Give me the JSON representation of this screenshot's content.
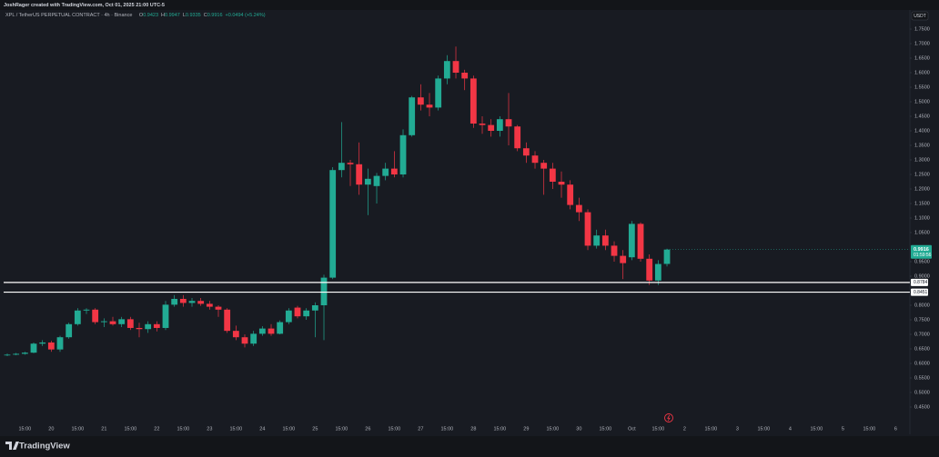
{
  "chart_data": {
    "type": "candlestick",
    "header": "JoshRager created with TradingView.com, Oct 01, 2025 21:00 UTC-5",
    "symbol": "XPL / TetherUS PERPETUAL CONTRACT · 4h · Binance",
    "legend_keys": [
      "O",
      "H",
      "L",
      "C"
    ],
    "change": "+0.0494 (+5.24%)",
    "currency": "USDT",
    "countdown": "01:59:56",
    "logo": "TradingView",
    "up_color": "#22ab94",
    "down_color": "#f23645",
    "categories": [
      null,
      null,
      "15:00",
      null,
      null,
      "20",
      null,
      null,
      "15:00",
      null,
      null,
      "21",
      null,
      null,
      "15:00",
      null,
      null,
      "22",
      null,
      null,
      "15:00",
      null,
      null,
      "23",
      null,
      null,
      "15:00",
      null,
      null,
      "24",
      null,
      null,
      "15:00",
      null,
      null,
      "25",
      null,
      null,
      "15:00",
      null,
      null,
      "26",
      null,
      null,
      "15:00",
      null,
      null,
      "27",
      null,
      null,
      "15:00",
      null,
      null,
      "28",
      null,
      null,
      "15:00",
      null,
      null,
      "29",
      null,
      null,
      "15:00",
      null,
      null,
      "30",
      null,
      null,
      "15:00",
      null,
      null,
      "Oct",
      null,
      null,
      "15:00",
      null,
      null,
      "2",
      null,
      null,
      "15:00",
      null,
      null,
      "3",
      null,
      null,
      "15:00",
      null,
      null,
      "4",
      null,
      null,
      "15:00",
      null,
      null,
      "5",
      null,
      null,
      "15:00",
      null,
      null,
      "6"
    ],
    "open": [
      0.628,
      0.63,
      0.633,
      0.637,
      0.668,
      0.672,
      0.648,
      0.69,
      0.735,
      0.782,
      0.785,
      0.742,
      0.745,
      0.735,
      0.752,
      0.722,
      0.718,
      0.735,
      0.722,
      0.802,
      0.822,
      0.808,
      0.815,
      0.805,
      0.795,
      0.785,
      0.712,
      0.69,
      0.668,
      0.702,
      0.72,
      0.702,
      0.742,
      0.792,
      0.762,
      0.782,
      0.8,
      0.895,
      1.265,
      1.29,
      1.285,
      1.215,
      1.21,
      1.245,
      1.27,
      1.25,
      1.385,
      1.515,
      1.49,
      1.48,
      1.58,
      1.64,
      1.6,
      1.58,
      1.425,
      1.42,
      1.4,
      1.44,
      1.415,
      1.34,
      1.315,
      1.29,
      1.27,
      1.225,
      1.215,
      1.145,
      1.12,
      1.005,
      1.04,
      1.005,
      0.97,
      0.965,
      1.08,
      0.96,
      0.885,
      0.9423,
      null,
      null,
      null,
      null,
      null,
      null,
      null,
      null,
      null,
      null,
      null,
      null,
      null,
      null,
      null,
      null,
      null,
      null,
      null,
      null,
      null,
      null,
      null,
      null,
      null,
      null
    ],
    "high": [
      0.634,
      0.636,
      0.64,
      0.672,
      0.68,
      0.678,
      0.695,
      0.74,
      0.79,
      0.79,
      0.79,
      0.755,
      0.76,
      0.76,
      0.76,
      0.74,
      0.745,
      0.745,
      0.815,
      0.835,
      0.835,
      0.825,
      0.825,
      0.815,
      0.8,
      0.79,
      0.73,
      0.7,
      0.712,
      0.728,
      0.735,
      0.748,
      0.79,
      0.798,
      0.79,
      0.81,
      0.905,
      1.275,
      1.43,
      1.3,
      1.36,
      1.27,
      1.255,
      1.29,
      1.33,
      1.405,
      1.52,
      1.56,
      1.53,
      1.59,
      1.66,
      1.69,
      1.61,
      1.59,
      1.45,
      1.44,
      1.45,
      1.53,
      1.42,
      1.36,
      1.33,
      1.3,
      1.29,
      1.26,
      1.23,
      1.17,
      1.13,
      1.06,
      1.06,
      1.02,
      0.99,
      1.09,
      1.085,
      0.975,
      0.955,
      0.9947,
      null,
      null,
      null,
      null,
      null,
      null,
      null,
      null,
      null,
      null,
      null,
      null,
      null,
      null,
      null,
      null,
      null,
      null,
      null,
      null,
      null,
      null,
      null,
      null,
      null,
      null
    ],
    "low": [
      0.625,
      0.628,
      0.63,
      0.635,
      0.66,
      0.64,
      0.64,
      0.685,
      0.73,
      0.77,
      0.735,
      0.725,
      0.73,
      0.725,
      0.715,
      0.69,
      0.705,
      0.71,
      0.715,
      0.795,
      0.795,
      0.795,
      0.798,
      0.785,
      0.76,
      0.705,
      0.68,
      0.655,
      0.66,
      0.695,
      0.695,
      0.7,
      0.735,
      0.755,
      0.75,
      0.69,
      0.68,
      0.89,
      1.24,
      1.21,
      1.18,
      1.11,
      1.15,
      1.23,
      1.24,
      1.24,
      1.38,
      1.47,
      1.45,
      1.47,
      1.56,
      1.58,
      1.54,
      1.41,
      1.39,
      1.38,
      1.38,
      1.35,
      1.33,
      1.29,
      1.27,
      1.18,
      1.2,
      1.17,
      1.13,
      1.09,
      0.99,
      0.995,
      0.99,
      0.95,
      0.89,
      0.955,
      0.95,
      0.87,
      0.87,
      0.9335,
      null,
      null,
      null,
      null,
      null,
      null,
      null,
      null,
      null,
      null,
      null,
      null,
      null,
      null,
      null,
      null,
      null,
      null,
      null,
      null,
      null,
      null,
      null,
      null,
      null,
      null
    ],
    "close": [
      0.63,
      0.633,
      0.637,
      0.668,
      0.672,
      0.648,
      0.69,
      0.735,
      0.782,
      0.785,
      0.742,
      0.745,
      0.735,
      0.752,
      0.722,
      0.718,
      0.735,
      0.722,
      0.802,
      0.822,
      0.808,
      0.815,
      0.805,
      0.795,
      0.785,
      0.712,
      0.69,
      0.668,
      0.702,
      0.72,
      0.702,
      0.742,
      0.782,
      0.762,
      0.782,
      0.8,
      0.895,
      1.265,
      1.29,
      1.285,
      1.215,
      1.235,
      1.245,
      1.27,
      1.25,
      1.385,
      1.515,
      1.49,
      1.48,
      1.58,
      1.64,
      1.6,
      1.58,
      1.425,
      1.42,
      1.4,
      1.44,
      1.415,
      1.34,
      1.315,
      1.29,
      1.27,
      1.225,
      1.215,
      1.145,
      1.12,
      1.005,
      1.04,
      1.005,
      0.97,
      0.945,
      1.08,
      0.96,
      0.885,
      0.942,
      0.9916,
      null,
      null,
      null,
      null,
      null,
      null,
      null,
      null,
      null,
      null,
      null,
      null,
      null,
      null,
      null,
      null,
      null,
      null,
      null,
      null,
      null,
      null,
      null,
      null,
      null,
      null
    ],
    "ylim": [
      0.3625,
      1.775
    ],
    "yticks": [
      {
        "value": 1.75,
        "label": "1.7500"
      },
      {
        "value": 1.7,
        "label": "1.7000"
      },
      {
        "value": 1.65,
        "label": "1.6500"
      },
      {
        "value": 1.6,
        "label": "1.6000"
      },
      {
        "value": 1.55,
        "label": "1.5500"
      },
      {
        "value": 1.5,
        "label": "1.5000"
      },
      {
        "value": 1.45,
        "label": "1.4500"
      },
      {
        "value": 1.4,
        "label": "1.4000"
      },
      {
        "value": 1.35,
        "label": "1.3500"
      },
      {
        "value": 1.3,
        "label": "1.3000"
      },
      {
        "value": 1.25,
        "label": "1.2500"
      },
      {
        "value": 1.2,
        "label": "1.2000"
      },
      {
        "value": 1.15,
        "label": "1.1500"
      },
      {
        "value": 1.1,
        "label": "1.1000"
      },
      {
        "value": 1.05,
        "label": "1.0500"
      },
      {
        "value": 0.95,
        "label": "0.9500"
      },
      {
        "value": 0.9,
        "label": "0.9000"
      },
      {
        "value": 0.8,
        "label": "0.8000"
      },
      {
        "value": 0.75,
        "label": "0.7500"
      },
      {
        "value": 0.7,
        "label": "0.7000"
      },
      {
        "value": 0.65,
        "label": "0.6500"
      },
      {
        "value": 0.6,
        "label": "0.6000"
      },
      {
        "value": 0.55,
        "label": "0.5500"
      },
      {
        "value": 0.5,
        "label": "0.5000"
      },
      {
        "value": 0.45,
        "label": "0.4500"
      }
    ],
    "hlines": [
      0.8784,
      0.8451
    ],
    "hline_color": "#ffffff"
  }
}
